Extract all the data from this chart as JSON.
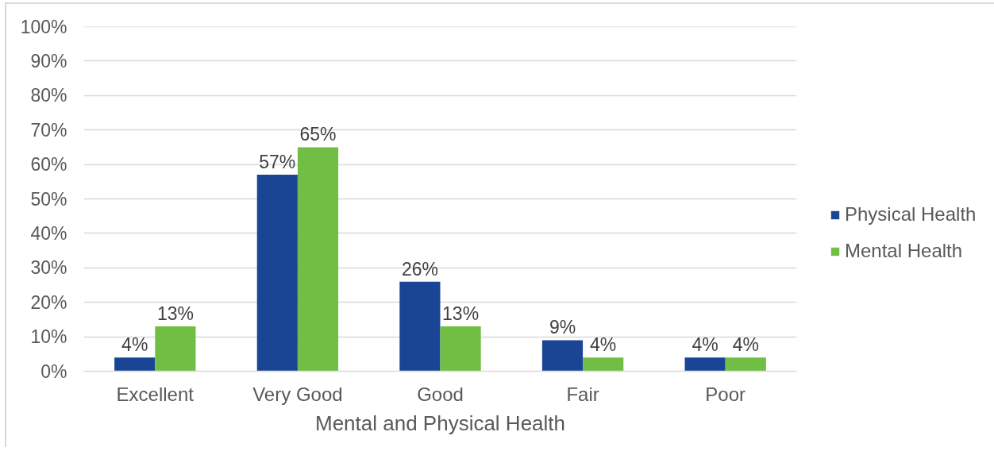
{
  "chart_data": {
    "type": "bar",
    "xlabel": "Mental and Physical Health",
    "categories": [
      "Excellent",
      "Very Good",
      "Good",
      "Fair",
      "Poor"
    ],
    "series": [
      {
        "name": "Physical Health",
        "color": "#1a4594",
        "values": [
          4,
          57,
          26,
          9,
          4
        ],
        "value_labels": [
          "4%",
          "57%",
          "26%",
          "9%",
          "4%"
        ]
      },
      {
        "name": "Mental Health",
        "color": "#70bf44",
        "values": [
          13,
          65,
          13,
          4,
          4
        ],
        "value_labels": [
          "13%",
          "65%",
          "13%",
          "4%",
          "4%"
        ]
      }
    ],
    "ylim": [
      0,
      100
    ],
    "yticks": [
      {
        "value": 0,
        "label": "0%"
      },
      {
        "value": 10,
        "label": "10%"
      },
      {
        "value": 20,
        "label": "20%"
      },
      {
        "value": 30,
        "label": "30%"
      },
      {
        "value": 40,
        "label": "40%"
      },
      {
        "value": 50,
        "label": "50%"
      },
      {
        "value": 60,
        "label": "60%"
      },
      {
        "value": 70,
        "label": "70%"
      },
      {
        "value": 80,
        "label": "80%"
      },
      {
        "value": 90,
        "label": "90%"
      },
      {
        "value": 100,
        "label": "100%"
      }
    ],
    "grid": "y",
    "legend": "right"
  }
}
